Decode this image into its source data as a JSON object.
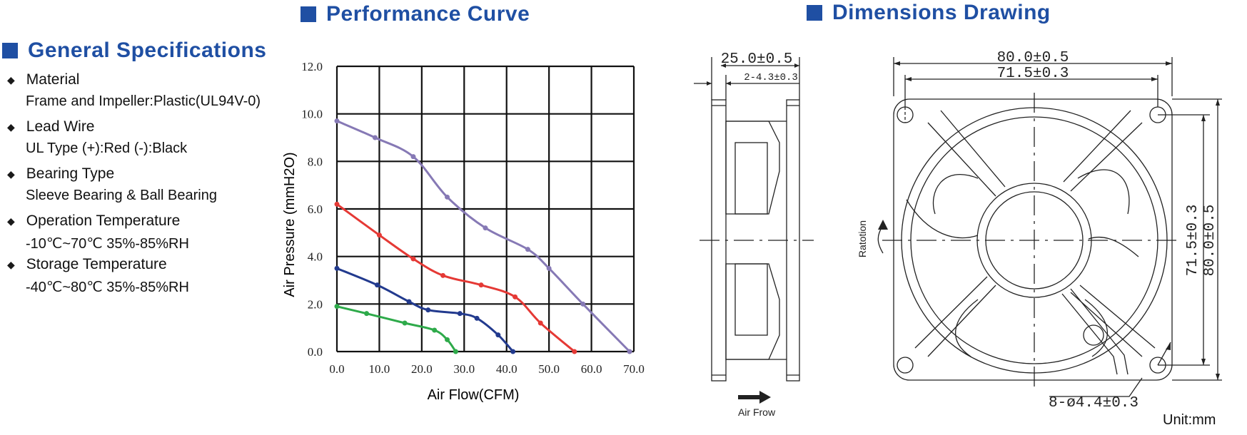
{
  "sections": {
    "general_title": "General Specifications",
    "performance_title": "Performance Curve",
    "dimensions_title": "Dimensions Drawing"
  },
  "specs": [
    {
      "label": "Material",
      "value": "Frame and Impeller:Plastic(UL94V-0)"
    },
    {
      "label": "Lead Wire",
      "value": "UL Type   (+):Red  (-):Black"
    },
    {
      "label": "Bearing Type",
      "value": "Sleeve Bearing & Ball Bearing"
    },
    {
      "label": "Operation Temperature",
      "value": "-10℃~70℃  35%-85%RH"
    },
    {
      "label": "Storage Temperature",
      "value": "-40℃~80℃  35%-85%RH"
    }
  ],
  "chart_data": {
    "type": "line",
    "title": "Performance Curve",
    "xlabel": "Air Flow(CFM)",
    "ylabel": "Air Pressure (mmH2O)",
    "xlim": [
      0,
      70
    ],
    "ylim": [
      0,
      12
    ],
    "xticks": [
      "0.0",
      "10.0",
      "20.0",
      "30.0",
      "40.0",
      "50.0",
      "60.0",
      "70.0"
    ],
    "yticks": [
      "0.0",
      "2.0",
      "4.0",
      "6.0",
      "8.0",
      "10.0",
      "12.0"
    ],
    "grid": true,
    "series": [
      {
        "color": "#8679b5",
        "points": [
          [
            0,
            9.7
          ],
          [
            9,
            9.0
          ],
          [
            18,
            8.2
          ],
          [
            26,
            6.5
          ],
          [
            35,
            5.2
          ],
          [
            45,
            4.3
          ],
          [
            50,
            3.5
          ],
          [
            58,
            2.0
          ],
          [
            69,
            0.0
          ]
        ]
      },
      {
        "color": "#e53935",
        "points": [
          [
            0,
            6.2
          ],
          [
            10,
            4.9
          ],
          [
            18,
            3.9
          ],
          [
            25,
            3.2
          ],
          [
            34,
            2.8
          ],
          [
            42,
            2.3
          ],
          [
            48,
            1.2
          ],
          [
            56,
            0.0
          ]
        ]
      },
      {
        "color": "#223a8e",
        "points": [
          [
            0,
            3.5
          ],
          [
            9.5,
            2.8
          ],
          [
            17,
            2.1
          ],
          [
            21.5,
            1.75
          ],
          [
            29,
            1.6
          ],
          [
            33,
            1.4
          ],
          [
            38,
            0.7
          ],
          [
            41.5,
            0.0
          ]
        ]
      },
      {
        "color": "#2eaa4a",
        "points": [
          [
            0,
            1.9
          ],
          [
            7,
            1.6
          ],
          [
            16,
            1.2
          ],
          [
            23,
            0.9
          ],
          [
            26,
            0.5
          ],
          [
            28,
            0.0
          ]
        ]
      }
    ]
  },
  "dimensions": {
    "side_width": "25.0±0.5",
    "side_rib": "2-4.3±0.3",
    "front_outer": "80.0±0.5",
    "front_hole_pitch": "71.5±0.3",
    "vertical_pitch": "71.5±0.3",
    "vertical_outer": "80.0±0.5",
    "holes": "8-ø4.4±0.3",
    "rotation_label": "Ratotion",
    "airflow_label": "Air Frow",
    "unit": "Unit:mm"
  }
}
